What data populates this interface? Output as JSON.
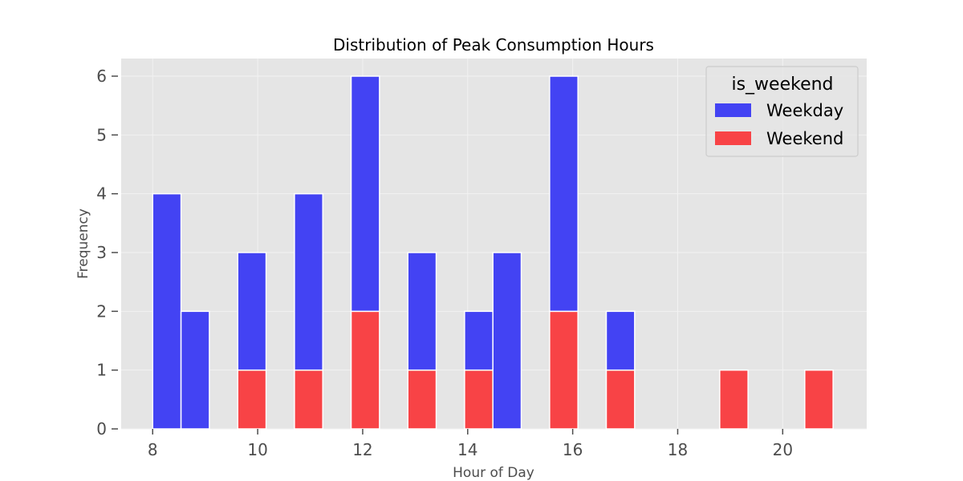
{
  "chart_data": {
    "type": "bar",
    "stacked": true,
    "title": "Distribution of Peak Consumption Hours",
    "xlabel": "Hour of Day",
    "ylabel": "Frequency",
    "x_ticks": [
      8,
      10,
      12,
      14,
      16,
      18,
      20
    ],
    "y_ticks": [
      0,
      1,
      2,
      3,
      4,
      5,
      6
    ],
    "xlim": [
      7.4,
      21.6
    ],
    "ylim": [
      0,
      6.3
    ],
    "grid": true,
    "legend": {
      "title": "is_weekend",
      "placement": "top-right"
    },
    "bins": [
      {
        "start": 8.0,
        "end": 8.54
      },
      {
        "start": 8.54,
        "end": 9.08
      },
      {
        "start": 9.62,
        "end": 10.16
      },
      {
        "start": 10.7,
        "end": 11.24
      },
      {
        "start": 11.78,
        "end": 12.32
      },
      {
        "start": 12.86,
        "end": 13.4
      },
      {
        "start": 13.94,
        "end": 14.48
      },
      {
        "start": 14.48,
        "end": 15.02
      },
      {
        "start": 15.56,
        "end": 16.1
      },
      {
        "start": 16.64,
        "end": 17.18
      },
      {
        "start": 18.8,
        "end": 19.34
      },
      {
        "start": 20.42,
        "end": 20.96
      }
    ],
    "series": [
      {
        "name": "Weekend",
        "color": "#f84346",
        "values": [
          0,
          0,
          1,
          1,
          2,
          1,
          1,
          0,
          2,
          1,
          1,
          1
        ]
      },
      {
        "name": "Weekday",
        "color": "#4343f3",
        "values": [
          4,
          2,
          2,
          3,
          4,
          2,
          1,
          3,
          4,
          1,
          0,
          0
        ]
      }
    ],
    "legend_order": [
      "Weekday",
      "Weekend"
    ]
  }
}
